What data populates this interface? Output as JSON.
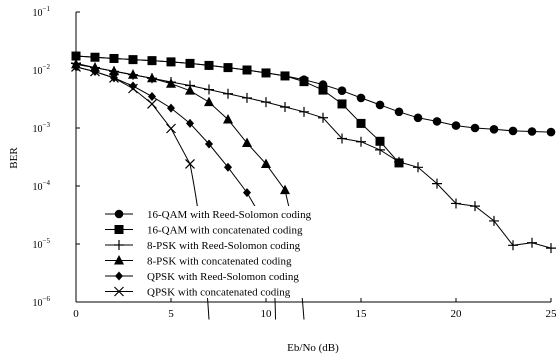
{
  "chart_data": {
    "type": "line",
    "title": "",
    "xlabel": "Eb/No (dB)",
    "ylabel": "BER",
    "xlim": [
      0,
      25
    ],
    "ylim_exp": [
      -6,
      -1
    ],
    "yscale": "log",
    "grid": false,
    "legend_position": "bottom-left",
    "x_ticks": [
      "0",
      "5",
      "10",
      "15",
      "20",
      "25"
    ],
    "y_ticks": [
      {
        "base": "10",
        "exp": "−6"
      },
      {
        "base": "10",
        "exp": "−5"
      },
      {
        "base": "10",
        "exp": "−4"
      },
      {
        "base": "10",
        "exp": "−3"
      },
      {
        "base": "10",
        "exp": "−2"
      },
      {
        "base": "10",
        "exp": "−1"
      }
    ],
    "series": [
      {
        "name": "16-QAM with Reed-Solomon coding",
        "marker": "circle",
        "x": [
          0,
          1,
          2,
          3,
          4,
          5,
          6,
          7,
          8,
          9,
          10,
          11,
          12,
          13,
          14,
          15,
          16,
          17,
          18,
          19,
          20,
          21,
          22,
          23,
          24,
          25
        ],
        "y": [
          0.0174,
          0.0166,
          0.0158,
          0.0151,
          0.0145,
          0.0138,
          0.013,
          0.012,
          0.011,
          0.01,
          0.0089,
          0.0079,
          0.0068,
          0.0056,
          0.0044,
          0.0033,
          0.0025,
          0.0019,
          0.0015,
          0.0013,
          0.0011,
          0.001,
          0.00095,
          0.00089,
          0.00087,
          0.00085
        ]
      },
      {
        "name": "16-QAM with concatenated coding",
        "marker": "square",
        "x": [
          0,
          1,
          2,
          3,
          4,
          5,
          6,
          7,
          8,
          9,
          10,
          11,
          12,
          13,
          14,
          15,
          16,
          17
        ],
        "y": [
          0.0174,
          0.0166,
          0.0158,
          0.0151,
          0.0145,
          0.0138,
          0.013,
          0.012,
          0.011,
          0.01,
          0.0089,
          0.0079,
          0.0063,
          0.0045,
          0.0026,
          0.0012,
          0.00059,
          0.00025
        ]
      },
      {
        "name": "8-PSK with Reed-Solomon coding",
        "marker": "plus",
        "x": [
          0,
          1,
          2,
          3,
          4,
          5,
          6,
          7,
          8,
          9,
          10,
          11,
          12,
          13,
          14,
          15,
          16,
          17,
          18,
          19,
          20,
          21,
          22,
          23,
          24,
          25
        ],
        "y": [
          0.013,
          0.011,
          0.0095,
          0.0083,
          0.0072,
          0.0062,
          0.0054,
          0.0046,
          0.0039,
          0.0033,
          0.0028,
          0.0023,
          0.0019,
          0.0015,
          0.00066,
          0.00058,
          0.00042,
          0.00026,
          0.00021,
          0.00011,
          5e-05,
          4.5e-05,
          2.5e-05,
          9.5e-06,
          1.05e-05,
          8.5e-06
        ]
      },
      {
        "name": "8-PSK with concatenated coding",
        "marker": "triangle",
        "x": [
          0,
          1,
          2,
          3,
          4,
          5,
          6,
          7,
          8,
          9,
          10,
          11
        ],
        "y": [
          0.0125,
          0.011,
          0.0095,
          0.0083,
          0.0072,
          0.0058,
          0.0044,
          0.0028,
          0.0014,
          0.00055,
          0.00024,
          8.5e-05
        ]
      },
      {
        "name": "QPSK with Reed-Solomon coding",
        "marker": "diamond",
        "x": [
          0,
          1,
          2,
          3,
          4,
          5,
          6,
          7,
          8,
          9,
          10
        ],
        "y": [
          0.0113,
          0.0094,
          0.0073,
          0.0053,
          0.0035,
          0.0022,
          0.0012,
          0.00053,
          0.00021,
          7.7e-05,
          2.1e-05
        ]
      },
      {
        "name": "QPSK with concatenated coding",
        "marker": "x",
        "x": [
          0,
          1,
          2,
          3,
          4,
          5,
          6
        ],
        "y": [
          0.0113,
          0.0094,
          0.0073,
          0.0048,
          0.0026,
          0.00098,
          0.00024
        ]
      }
    ],
    "tails": [
      {
        "series": 4,
        "to": [
          10.5,
          5e-07
        ]
      },
      {
        "series": 5,
        "to": [
          7.0,
          5e-07
        ]
      },
      {
        "series": 3,
        "to": [
          12.0,
          5e-07
        ]
      }
    ]
  }
}
